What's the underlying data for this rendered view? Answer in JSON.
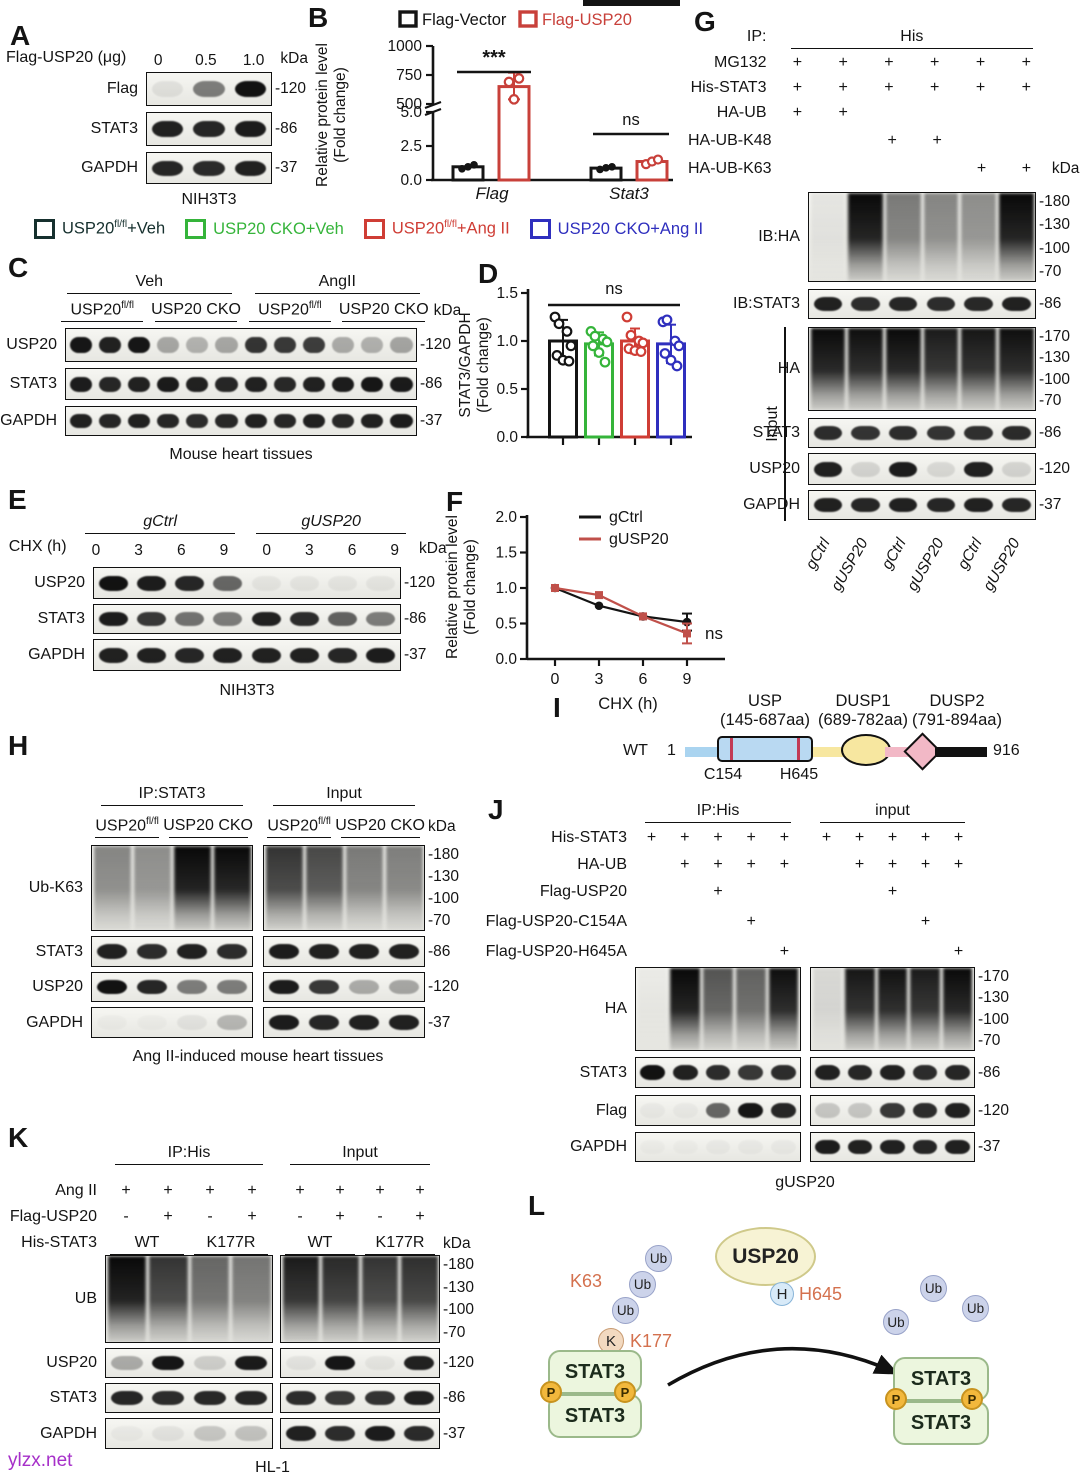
{
  "panel_labels": {
    "A": "A",
    "B": "B",
    "C": "C",
    "D": "D",
    "E": "E",
    "F": "F",
    "G": "G",
    "H": "H",
    "I": "I",
    "J": "J",
    "K": "K",
    "L": "L"
  },
  "watermark": {
    "text": "ylzx.net",
    "color": "#a62fc9"
  },
  "legend_cd": {
    "items": [
      {
        "pre": "USP20",
        "sup": "fl/fl",
        "post": "+Veh",
        "color": "#16302e"
      },
      {
        "pre": "USP20 CKO",
        "sup": "",
        "post": "+Veh",
        "color": "#35b43a"
      },
      {
        "pre": "USP20",
        "sup": "fl/fl",
        "post": "+Ang II",
        "color": "#cf3d35"
      },
      {
        "pre": "USP20 CKO",
        "sup": "",
        "post": "+Ang II",
        "color": "#2f2fbe"
      }
    ]
  },
  "panels": {
    "A": {
      "header_label": "Flag-USP20 (μg)",
      "lane_labels": [
        "0",
        "0.5",
        "1.0"
      ],
      "kda": "kDa",
      "rows": [
        {
          "label": "Flag",
          "markers": [
            "120"
          ],
          "lanes": [
            0.07,
            0.5,
            0.97
          ]
        },
        {
          "label": "STAT3",
          "markers": [
            "86"
          ],
          "lanes": [
            0.9,
            0.88,
            0.92
          ]
        },
        {
          "label": "GAPDH",
          "markers": [
            "37"
          ],
          "lanes": [
            0.88,
            0.86,
            0.9
          ]
        }
      ],
      "caption": "NIH3T3"
    },
    "C": {
      "top_groups": [
        {
          "text": "Veh",
          "span": 1
        },
        {
          "text": "AngII",
          "span": 1
        }
      ],
      "subgroups": [
        {
          "pre": "USP20",
          "sup": "fl/fl",
          "span": 1
        },
        {
          "pre": "USP20 CKO",
          "span": 1
        },
        {
          "pre": "USP20",
          "sup": "fl/fl",
          "span": 1
        },
        {
          "pre": "USP20 CKO",
          "span": 1
        }
      ],
      "kda": "kDa",
      "rows": [
        {
          "label": "USP20",
          "markers": [
            "120"
          ],
          "lanes": [
            0.95,
            0.9,
            0.95,
            0.32,
            0.27,
            0.32,
            0.82,
            0.8,
            0.78,
            0.3,
            0.28,
            0.33
          ]
        },
        {
          "label": "STAT3",
          "markers": [
            "86"
          ],
          "lanes": [
            0.92,
            0.88,
            0.9,
            0.93,
            0.9,
            0.88,
            0.9,
            0.87,
            0.9,
            0.92,
            0.95,
            0.93
          ]
        },
        {
          "label": "GAPDH",
          "markers": [
            "37"
          ],
          "lanes": [
            0.9,
            0.88,
            0.9,
            0.88,
            0.85,
            0.87,
            0.9,
            0.88,
            0.9,
            0.87,
            0.9,
            0.92
          ]
        }
      ],
      "caption": "Mouse heart tissues"
    },
    "E": {
      "top_groups": [
        {
          "text": "gCtrl",
          "span": 1,
          "italic": true
        },
        {
          "text": "gUSP20",
          "span": 1,
          "italic": true
        }
      ],
      "cond_label": "CHX (h)",
      "lane_labels": [
        "0",
        "3",
        "6",
        "9",
        "0",
        "3",
        "6",
        "9"
      ],
      "kda": "kDa",
      "rows": [
        {
          "label": "USP20",
          "markers": [
            "120"
          ],
          "lanes": [
            0.97,
            0.92,
            0.88,
            0.6,
            0.05,
            0.05,
            0.05,
            0.05
          ]
        },
        {
          "label": "STAT3",
          "markers": [
            "86"
          ],
          "lanes": [
            0.92,
            0.8,
            0.55,
            0.5,
            0.9,
            0.85,
            0.62,
            0.5
          ]
        },
        {
          "label": "GAPDH",
          "markers": [
            "37"
          ],
          "lanes": [
            0.9,
            0.9,
            0.88,
            0.9,
            0.9,
            0.9,
            0.88,
            0.92
          ]
        }
      ],
      "caption": "NIH3T3"
    },
    "G": {
      "ip_label": "IP:",
      "ip_groups": [
        {
          "text": "His",
          "span": 1
        }
      ],
      "cond": [
        {
          "label": "MG132",
          "marks": [
            "+",
            "+",
            "+",
            "+",
            "+",
            "+"
          ]
        },
        {
          "label": "His-STAT3",
          "marks": [
            "+",
            "+",
            "+",
            "+",
            "+",
            "+"
          ]
        },
        {
          "label": "HA-UB",
          "marks": [
            "+",
            "+",
            "",
            "",
            "",
            ""
          ]
        },
        {
          "label": "HA-UB-K48",
          "marks": [
            "",
            "",
            "+",
            "+",
            "",
            ""
          ]
        },
        {
          "label": "HA-UB-K63",
          "marks": [
            "",
            "",
            "",
            "",
            "+",
            "+"
          ]
        }
      ],
      "kda": "kDa",
      "input_label": "Input",
      "rows": [
        {
          "label": "IB:HA",
          "markers": [
            "180",
            "130",
            "100",
            "70"
          ],
          "lanes": [
            0.06,
            0.97,
            0.5,
            0.45,
            0.42,
            0.97
          ]
        },
        {
          "label": "IB:STAT3",
          "markers": [
            "86"
          ],
          "lanes": [
            0.9,
            0.85,
            0.88,
            0.85,
            0.87,
            0.9
          ]
        },
        {
          "label": "HA",
          "markers": [
            "170",
            "130",
            "100",
            "70"
          ],
          "lanes": [
            0.95,
            0.93,
            0.95,
            0.88,
            0.9,
            0.93
          ]
        },
        {
          "label": "STAT3",
          "markers": [
            "86"
          ],
          "lanes": [
            0.85,
            0.82,
            0.85,
            0.82,
            0.84,
            0.86
          ]
        },
        {
          "label": "USP20",
          "markers": [
            "120"
          ],
          "lanes": [
            0.9,
            0.12,
            0.92,
            0.1,
            0.9,
            0.12
          ]
        },
        {
          "label": "GAPDH",
          "markers": [
            "37"
          ],
          "lanes": [
            0.9,
            0.88,
            0.9,
            0.88,
            0.9,
            0.88
          ]
        }
      ],
      "lane_labels": [
        "gCtrl",
        "gUSP20",
        "gCtrl",
        "gUSP20",
        "gCtrl",
        "gUSP20"
      ]
    },
    "H": {
      "hdr_left": [
        {
          "text": "IP:STAT3"
        }
      ],
      "hdr_right": [
        {
          "text": "Input"
        }
      ],
      "sub_left": [
        {
          "pre": "USP20",
          "sup": "fl/fl"
        },
        {
          "pre": "USP20 CKO"
        }
      ],
      "sub_right": [
        {
          "pre": "USP20",
          "sup": "fl/fl"
        },
        {
          "pre": "USP20 CKO"
        }
      ],
      "kda": "kDa",
      "rows": [
        {
          "label": "Ub-K63",
          "markers": [
            "180",
            "130",
            "100",
            "70"
          ],
          "left": [
            0.45,
            0.42,
            0.98,
            0.96
          ],
          "right": [
            0.78,
            0.7,
            0.5,
            0.48
          ]
        },
        {
          "label": "STAT3",
          "markers": [
            "86"
          ],
          "left": [
            0.9,
            0.85,
            0.9,
            0.85
          ],
          "right": [
            0.92,
            0.9,
            0.9,
            0.9
          ]
        },
        {
          "label": "USP20",
          "markers": [
            "120"
          ],
          "left": [
            0.97,
            0.88,
            0.5,
            0.5
          ],
          "right": [
            0.92,
            0.8,
            0.3,
            0.32
          ]
        },
        {
          "label": "GAPDH",
          "markers": [
            "37"
          ],
          "left": [
            0.02,
            0.02,
            0.06,
            0.25
          ],
          "right": [
            0.92,
            0.88,
            0.9,
            0.9
          ]
        }
      ],
      "caption": "Ang II-induced mouse heart tissues"
    },
    "J": {
      "hdr_left": [
        {
          "text": "IP:His"
        }
      ],
      "hdr_right": [
        {
          "text": "input"
        }
      ],
      "cond": [
        {
          "label": "His-STAT3",
          "left": [
            "+",
            "+",
            "+",
            "+",
            "+"
          ],
          "right": [
            "+",
            "+",
            "+",
            "+",
            "+"
          ]
        },
        {
          "label": "HA-UB",
          "left": [
            "",
            "+",
            "+",
            "+",
            "+"
          ],
          "right": [
            "",
            "+",
            "+",
            "+",
            "+"
          ]
        },
        {
          "label": "Flag-USP20",
          "left": [
            "",
            "",
            "+",
            "",
            ""
          ],
          "right": [
            "",
            "",
            "+",
            "",
            ""
          ]
        },
        {
          "label": "Flag-USP20-C154A",
          "left": [
            "",
            "",
            "",
            "+",
            ""
          ],
          "right": [
            "",
            "",
            "",
            "+",
            ""
          ]
        },
        {
          "label": "Flag-USP20-H645A",
          "left": [
            "",
            "",
            "",
            "",
            "+"
          ],
          "right": [
            "",
            "",
            "",
            "",
            "+"
          ]
        }
      ],
      "rows": [
        {
          "label": "HA",
          "markers": [
            "170",
            "130",
            "100",
            "70"
          ],
          "left": [
            0.04,
            0.97,
            0.65,
            0.6,
            0.93
          ],
          "right": [
            0.12,
            0.9,
            0.92,
            0.88,
            0.95
          ]
        },
        {
          "label": "STAT3",
          "markers": [
            "86"
          ],
          "left": [
            0.97,
            0.9,
            0.85,
            0.8,
            0.85
          ],
          "right": [
            0.9,
            0.88,
            0.9,
            0.85,
            0.88
          ]
        },
        {
          "label": "Flag",
          "markers": [
            "120"
          ],
          "left": [
            0.03,
            0.03,
            0.6,
            0.95,
            0.88
          ],
          "right": [
            0.18,
            0.18,
            0.8,
            0.85,
            0.9
          ]
        },
        {
          "label": "GAPDH",
          "markers": [
            "37"
          ],
          "left": [
            0.02,
            0.02,
            0.03,
            0.03,
            0.03
          ],
          "right": [
            0.92,
            0.9,
            0.9,
            0.88,
            0.9
          ]
        }
      ],
      "caption": "gUSP20"
    },
    "K": {
      "hdr_left": [
        {
          "text": "IP:His"
        }
      ],
      "hdr_right": [
        {
          "text": "Input"
        }
      ],
      "cond": [
        {
          "label": "Ang II",
          "left": [
            "+",
            "+",
            "+",
            "+"
          ],
          "right": [
            "+",
            "+",
            "+",
            "+"
          ]
        },
        {
          "label": "Flag-USP20",
          "left": [
            "-",
            "+",
            "-",
            "+"
          ],
          "right": [
            "-",
            "+",
            "-",
            "+"
          ]
        }
      ],
      "his_label": "His-STAT3",
      "his_left": [
        {
          "text": "WT"
        },
        {
          "text": "K177R"
        }
      ],
      "his_right": [
        {
          "text": "WT"
        },
        {
          "text": "K177R"
        }
      ],
      "kda": "kDa",
      "rows": [
        {
          "label": "UB",
          "markers": [
            "180",
            "130",
            "100",
            "70"
          ],
          "left": [
            0.98,
            0.78,
            0.58,
            0.52
          ],
          "right": [
            0.88,
            0.82,
            0.78,
            0.8
          ]
        },
        {
          "label": "USP20",
          "markers": [
            "120"
          ],
          "left": [
            0.3,
            0.95,
            0.15,
            0.93
          ],
          "right": [
            0.06,
            0.95,
            0.05,
            0.9
          ]
        },
        {
          "label": "STAT3",
          "markers": [
            "86"
          ],
          "left": [
            0.88,
            0.85,
            0.87,
            0.88
          ],
          "right": [
            0.85,
            0.8,
            0.82,
            0.9
          ]
        },
        {
          "label": "GAPDH",
          "markers": [
            "37"
          ],
          "left": [
            0.03,
            0.06,
            0.18,
            0.2
          ],
          "right": [
            0.9,
            0.85,
            0.92,
            0.86
          ]
        }
      ],
      "caption": "HL-1"
    },
    "I": {
      "wt": "WT",
      "start": "1",
      "end": "916",
      "domains": [
        {
          "name": "USP",
          "range": "(145-687aa)"
        },
        {
          "name": "DUSP1",
          "range": "(689-782aa)"
        },
        {
          "name": "DUSP2",
          "range": "(791-894aa)"
        }
      ],
      "sites": [
        "C154",
        "H645"
      ]
    },
    "L": {
      "usp20": "USP20",
      "h": "H",
      "h645": "H645",
      "k": "K",
      "k177": "K177",
      "k63": "K63",
      "ub": "Ub",
      "stat3": "STAT3",
      "p": "P"
    }
  },
  "chart_data": [
    {
      "id": "B",
      "type": "bar",
      "axis_break": true,
      "legend": [
        {
          "label": "Flag-Vector",
          "color": "#141414"
        },
        {
          "label": "Flag-USP20",
          "color": "#c8403a"
        }
      ],
      "ylabel": "Relative protein level (Fold change)",
      "yticks_upper": [
        "1000",
        "750",
        "500"
      ],
      "yticks_lower": [
        "5.0",
        "2.5",
        "0.0"
      ],
      "ylim_lower": [
        0,
        5
      ],
      "ylim_upper": [
        500,
        1000
      ],
      "categories": [
        "Flag",
        "Stat3"
      ],
      "series": [
        {
          "name": "Flag-Vector",
          "color": "#141414",
          "values": [
            1.0,
            0.9
          ],
          "points": [
            [
              0.85,
              1.0,
              1.15
            ],
            [
              0.8,
              0.92,
              1.0
            ]
          ]
        },
        {
          "name": "Flag-USP20",
          "color": "#c8403a",
          "values": [
            650,
            1.4
          ],
          "points": [
            [
              530,
              690,
              720
            ],
            [
              1.2,
              1.4,
              1.55
            ]
          ],
          "error": [
            [
              540,
              770
            ],
            null
          ]
        }
      ],
      "annotations": [
        {
          "category": "Flag",
          "text": "***"
        },
        {
          "category": "Stat3",
          "text": "ns"
        }
      ]
    },
    {
      "id": "D",
      "type": "bar-scatter",
      "ylabel": "STAT3/GAPDH (Fold change)",
      "yticks": [
        "1.5",
        "1.0",
        "0.5",
        "0.0"
      ],
      "ylim": [
        0,
        1.5
      ],
      "annotation": "ns",
      "bars": [
        {
          "group": "USP20fl/fl+Veh",
          "color": "#141414",
          "value": 1.0,
          "error": 0.22,
          "dots": [
            1.25,
            1.18,
            1.1,
            0.95,
            0.85,
            0.8,
            0.79
          ]
        },
        {
          "group": "USP20 CKO+Veh",
          "color": "#35b43a",
          "value": 0.97,
          "error": 0.12,
          "dots": [
            1.1,
            1.05,
            1.02,
            0.99,
            0.95,
            0.88,
            0.78
          ]
        },
        {
          "group": "USP20fl/fl+Ang II",
          "color": "#cf3d35",
          "value": 1.0,
          "error": 0.13,
          "dots": [
            1.25,
            1.06,
            1.0,
            0.98,
            0.92,
            0.9,
            0.89
          ]
        },
        {
          "group": "USP20 CKO+Ang II",
          "color": "#2f2fbe",
          "value": 0.97,
          "error": 0.2,
          "dots": [
            1.2,
            1.22,
            1.0,
            0.95,
            0.87,
            0.8,
            0.74
          ]
        }
      ]
    },
    {
      "id": "F",
      "type": "line",
      "xlabel": "CHX (h)",
      "ylabel": "Relative protein level (Fold change)",
      "x": [
        0,
        3,
        6,
        9
      ],
      "yticks": [
        "2.0",
        "1.5",
        "1.0",
        "0.5",
        "0.0"
      ],
      "ylim": [
        0,
        2.0
      ],
      "annotation": "ns",
      "series": [
        {
          "name": "gCtrl",
          "color": "#141414",
          "marker": "circle",
          "values": [
            1.0,
            0.75,
            0.6,
            0.52
          ],
          "error_last": 0.12
        },
        {
          "name": "gUSP20",
          "color": "#c0504a",
          "marker": "square",
          "values": [
            1.0,
            0.9,
            0.6,
            0.36
          ],
          "error_last": 0.14
        }
      ]
    }
  ]
}
